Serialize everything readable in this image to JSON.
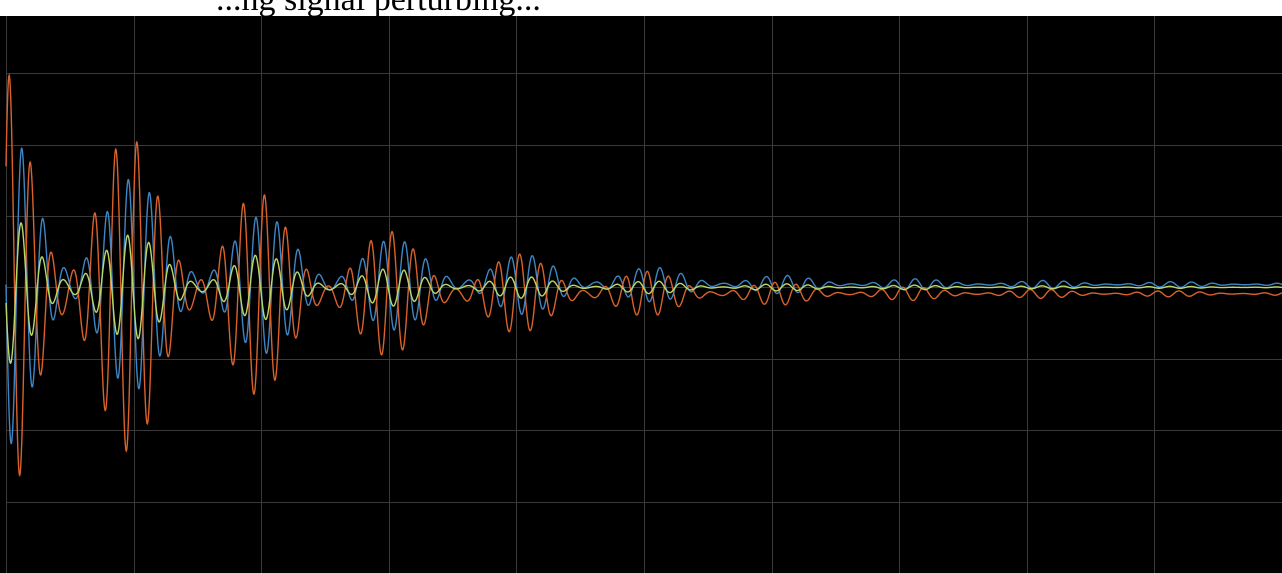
{
  "caption": {
    "text": "...ng signal perturbing..."
  },
  "colors": {
    "background": "#000000",
    "grid": "#3a3a3a",
    "blue": "#3d86c6",
    "orange": "#d9622b",
    "green": "#b9d86a"
  },
  "chart_data": {
    "type": "line",
    "title": "",
    "xlabel": "",
    "ylabel": "",
    "grid": true,
    "xlim": [
      0,
      10
    ],
    "ylim": [
      -4,
      3.8
    ],
    "x_gridlines": [
      0,
      1,
      2,
      3,
      4,
      5,
      6,
      7,
      8,
      9,
      10
    ],
    "y_gridlines": [
      -3,
      -2,
      -1,
      0,
      1,
      2,
      3
    ],
    "series": [
      {
        "name": "",
        "color": "#3d86c6",
        "offset": 0.04,
        "envelope": [
          [
            0,
            2.3
          ],
          [
            1.5,
            1.2
          ],
          [
            2.5,
            0.8
          ],
          [
            4.5,
            0.35
          ],
          [
            6.5,
            0.1
          ],
          [
            10,
            0.03
          ]
        ],
        "freq": 6.0,
        "decay_phase": 0.0
      },
      {
        "name": "",
        "color": "#d9622b",
        "offset": -0.09,
        "envelope": [
          [
            0,
            3.2
          ],
          [
            1.5,
            1.8
          ],
          [
            2.5,
            1.1
          ],
          [
            4.5,
            0.45
          ],
          [
            6.5,
            0.12
          ],
          [
            10,
            0.03
          ]
        ],
        "freq": 6.0,
        "decay_phase": 0.6
      },
      {
        "name": "",
        "color": "#b9d86a",
        "offset": 0.0,
        "envelope": [
          [
            0,
            1.1
          ],
          [
            1.5,
            0.6
          ],
          [
            2.5,
            0.35
          ],
          [
            4.5,
            0.12
          ],
          [
            6.5,
            0.04
          ],
          [
            10,
            0.01
          ]
        ],
        "freq": 6.0,
        "decay_phase": 0.2
      }
    ]
  }
}
